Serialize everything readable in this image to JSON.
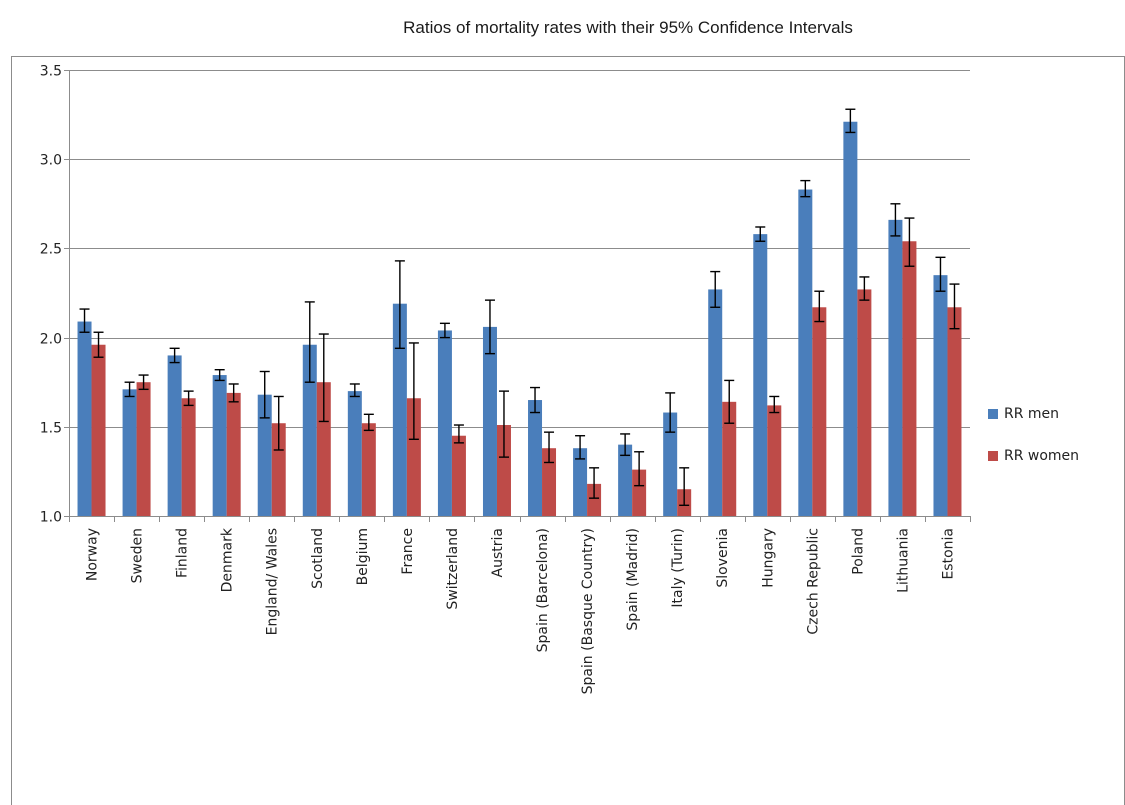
{
  "chart_data": {
    "type": "bar",
    "title": "Ratios of mortality rates with their 95% Confidence Intervals",
    "xlabel": "",
    "ylabel": "",
    "ylim": [
      1.0,
      3.5
    ],
    "yticks": [
      "1.0",
      "1.5",
      "2.0",
      "2.5",
      "3.0",
      "3.5"
    ],
    "grid": true,
    "legend_position": "right",
    "categories": [
      "Norway",
      "Sweden",
      "Finland",
      "Denmark",
      "England/ Wales",
      "Scotland",
      "Belgium",
      "France",
      "Switzerland",
      "Austria",
      "Spain (Barcelona)",
      "Spain (Basque Country)",
      "Spain (Madrid)",
      "Italy (Turin)",
      "Slovenia",
      "Hungary",
      "Czech Republic",
      "Poland",
      "Lithuania",
      "Estonia"
    ],
    "series": [
      {
        "name": "RR men",
        "color": "#4a7ebb",
        "values": [
          2.09,
          1.71,
          1.9,
          1.79,
          1.68,
          1.96,
          1.7,
          2.19,
          2.04,
          2.06,
          1.65,
          1.38,
          1.4,
          1.58,
          2.27,
          2.58,
          2.83,
          3.21,
          2.66,
          2.35
        ],
        "ci_low": [
          2.03,
          1.67,
          1.86,
          1.76,
          1.55,
          1.75,
          1.67,
          1.94,
          2.0,
          1.91,
          1.58,
          1.32,
          1.34,
          1.47,
          2.17,
          2.54,
          2.79,
          3.15,
          2.57,
          2.26
        ],
        "ci_high": [
          2.16,
          1.75,
          1.94,
          1.82,
          1.81,
          2.2,
          1.74,
          2.43,
          2.08,
          2.21,
          1.72,
          1.45,
          1.46,
          1.69,
          2.37,
          2.62,
          2.88,
          3.28,
          2.75,
          2.45
        ]
      },
      {
        "name": "RR women",
        "color": "#be4b48",
        "values": [
          1.96,
          1.75,
          1.66,
          1.69,
          1.52,
          1.75,
          1.52,
          1.66,
          1.45,
          1.51,
          1.38,
          1.18,
          1.26,
          1.15,
          1.64,
          1.62,
          2.17,
          2.27,
          2.54,
          2.17
        ],
        "ci_low": [
          1.89,
          1.71,
          1.62,
          1.64,
          1.37,
          1.53,
          1.48,
          1.43,
          1.41,
          1.33,
          1.3,
          1.1,
          1.17,
          1.06,
          1.52,
          1.58,
          2.09,
          2.21,
          2.4,
          2.05
        ],
        "ci_high": [
          2.03,
          1.79,
          1.7,
          1.74,
          1.67,
          2.02,
          1.57,
          1.97,
          1.51,
          1.7,
          1.47,
          1.27,
          1.36,
          1.27,
          1.76,
          1.67,
          2.26,
          2.34,
          2.67,
          2.3
        ]
      }
    ]
  }
}
